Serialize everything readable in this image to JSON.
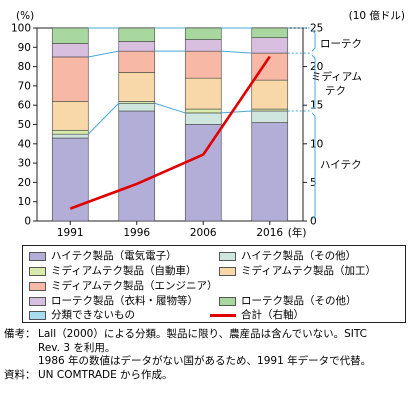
{
  "chart_data": {
    "type": "bar",
    "stacked": true,
    "categories": [
      "1991",
      "1996",
      "2006",
      "2016"
    ],
    "x_unit": "(年)",
    "y_left_unit": "(%)",
    "y_right_unit": "(10 億ドル)",
    "ylim_left": [
      0,
      100
    ],
    "ylim_right": [
      0,
      25
    ],
    "yticks_left": [
      0,
      10,
      20,
      30,
      40,
      50,
      60,
      70,
      80,
      90,
      100
    ],
    "yticks_right": [
      0,
      5,
      10,
      15,
      20,
      25
    ],
    "series": [
      {
        "name": "ハイテク製品（電気電子）",
        "color": "#b3aed8",
        "values": [
          43,
          57,
          50,
          51
        ]
      },
      {
        "name": "ハイテク製品（その他）",
        "color": "#cfe6de",
        "values": [
          2,
          4,
          6,
          6
        ]
      },
      {
        "name": "ミディアムテク製品（自動車）",
        "color": "#d8ebaa",
        "values": [
          2,
          1,
          2,
          1
        ]
      },
      {
        "name": "ミディアムテク製品（加工）",
        "color": "#f8d7a8",
        "values": [
          15,
          15,
          16,
          15
        ]
      },
      {
        "name": "ミディアムテク製品（エンジニア）",
        "color": "#f8b8a6",
        "values": [
          23,
          11,
          14,
          14
        ]
      },
      {
        "name": "ローテク製品（衣料・履物等）",
        "color": "#d8bfe0",
        "values": [
          7,
          5,
          6,
          8
        ]
      },
      {
        "name": "ローテク製品（その他）",
        "color": "#a8d8a0",
        "values": [
          8,
          7,
          6,
          5
        ]
      },
      {
        "name": "分類できないもの",
        "color": "#a8dcef",
        "values": [
          0,
          0,
          0,
          0
        ]
      }
    ],
    "line": {
      "name": "合計（右軸）",
      "color": "#e00000",
      "axis": "right",
      "values": [
        1.6,
        4.8,
        8.6,
        21.3
      ]
    },
    "bracket_labels": [
      "ローテク",
      "ミディアム",
      "テク",
      "ハイテク"
    ]
  },
  "legend": {
    "items": [
      "ハイテク製品（電気電子）",
      "ハイテク製品（その他）",
      "ミディアムテク製品（自動車）",
      "ミディアムテク製品（加工）",
      "ミディアムテク製品（エンジニア）",
      "ローテク製品（衣料・履物等）",
      "ローテク製品（その他）",
      "分類できないもの",
      "合計（右軸）"
    ],
    "colors": [
      "#b3aed8",
      "#cfe6de",
      "#d8ebaa",
      "#f8d7a8",
      "#f8b8a6",
      "#d8bfe0",
      "#a8d8a0",
      "#a8dcef",
      "#e00000"
    ]
  },
  "notes": {
    "biko_label": "備考：",
    "biko_line1": "Lall（2000）による分類。製品に限り、農産品は含んでいない。SITC",
    "biko_line2": "Rev. 3 を利用。",
    "biko_line3": "1986 年の数値はデータがない国があるため、1991 年データで代替。",
    "shiryo_label": "資料：",
    "shiryo_line": "UN COMTRADE から作成。"
  }
}
